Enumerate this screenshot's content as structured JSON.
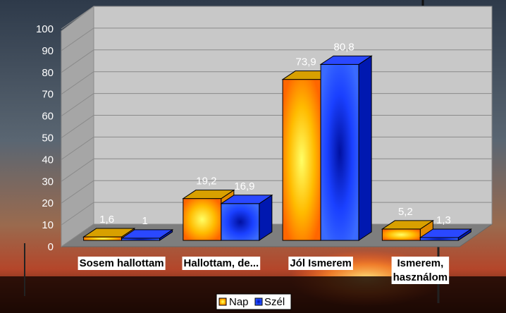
{
  "chart_data": {
    "type": "bar",
    "categories": [
      "Sosem hallottam",
      "Hallottam, de...",
      "Jól Ismerem",
      "Ismerem, használom"
    ],
    "category_lines": [
      [
        "Sosem hallottam"
      ],
      [
        "Hallottam, de..."
      ],
      [
        "Jól Ismerem"
      ],
      [
        "Ismerem,",
        "használom"
      ]
    ],
    "series": [
      {
        "name": "Nap",
        "values": [
          1.6,
          19.2,
          73.9,
          5.2
        ],
        "data_labels": [
          "1,6",
          "19,2",
          "73,9",
          "5,2"
        ],
        "color": "#ffcc00"
      },
      {
        "name": "Szél",
        "values": [
          1,
          16.9,
          80.8,
          1.3
        ],
        "data_labels": [
          "1",
          "16,9",
          "80,8",
          "1,3"
        ],
        "color": "#1a3cff"
      }
    ],
    "ylim": [
      0,
      100
    ],
    "yticks": [
      "0",
      "10",
      "20",
      "30",
      "40",
      "50",
      "60",
      "70",
      "80",
      "90",
      "100"
    ],
    "grid": true,
    "legend_position": "bottom-center",
    "title": "",
    "xlabel": "",
    "ylabel": ""
  }
}
